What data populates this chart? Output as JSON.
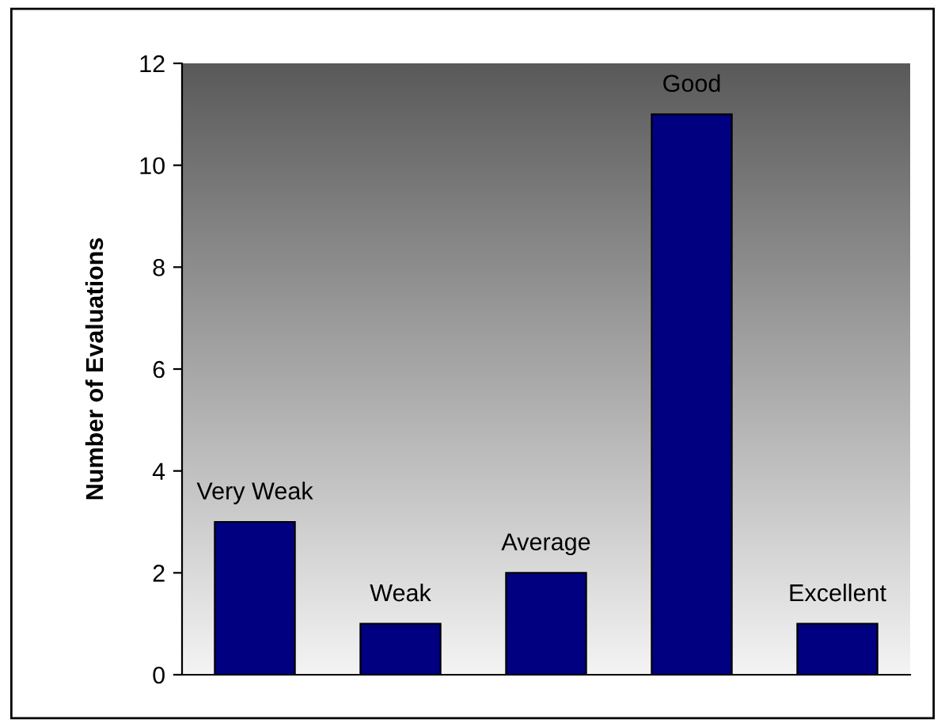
{
  "chart_data": {
    "type": "bar",
    "ylabel": "Number of Evaluations",
    "categories": [
      "Very Weak",
      "Weak",
      "Average",
      "Good",
      "Excellent"
    ],
    "values": [
      3,
      1,
      2,
      11,
      1
    ],
    "color": "#000080",
    "ylim": [
      0,
      12
    ],
    "yticks": [
      0,
      2,
      4,
      6,
      8,
      10,
      12
    ],
    "grid": false,
    "legend": false
  }
}
